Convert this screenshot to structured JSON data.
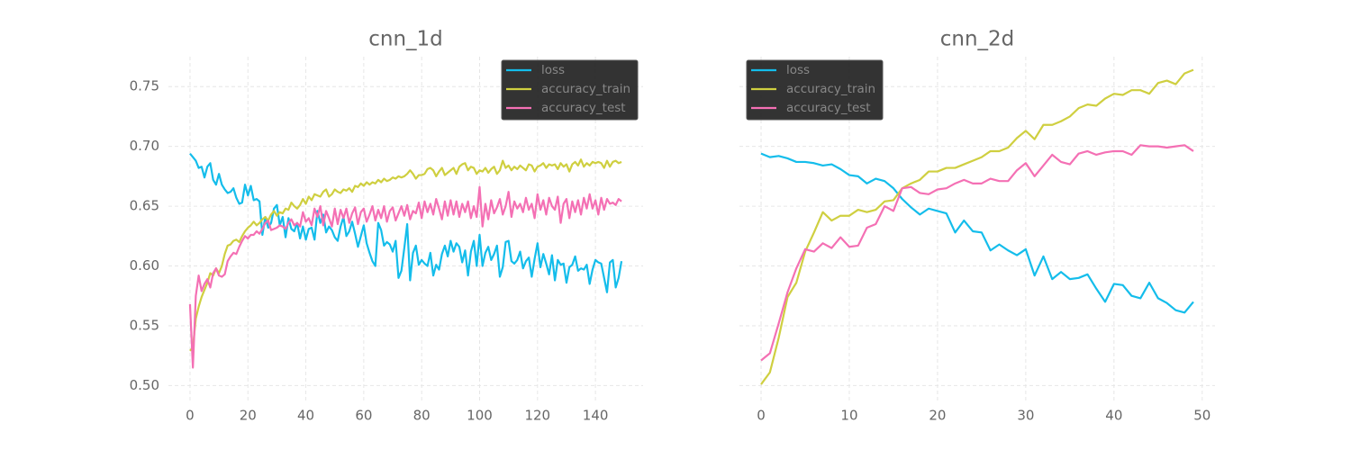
{
  "chart_data": [
    {
      "type": "line",
      "title": "cnn_1d",
      "legend": "upper right",
      "grid": true,
      "xlim": [
        -7.45,
        156.45
      ],
      "xticks": [
        0,
        20,
        40,
        60,
        80,
        100,
        120,
        140
      ],
      "ylim": [
        0.486,
        0.775
      ],
      "yticks": [
        {
          "value": 0.5,
          "label": "0.50"
        },
        0.55,
        {
          "value": 0.6,
          "label": "0.60"
        },
        0.65,
        {
          "value": 0.7,
          "label": "0.70"
        },
        0.75
      ],
      "x": [
        0,
        1,
        2,
        3,
        4,
        5,
        6,
        7,
        8,
        9,
        10,
        11,
        12,
        13,
        14,
        15,
        16,
        17,
        18,
        19,
        20,
        21,
        22,
        23,
        24,
        25,
        26,
        27,
        28,
        29,
        30,
        31,
        32,
        33,
        34,
        35,
        36,
        37,
        38,
        39,
        40,
        41,
        42,
        43,
        44,
        45,
        46,
        47,
        48,
        49,
        50,
        51,
        52,
        53,
        54,
        55,
        56,
        57,
        58,
        59,
        60,
        61,
        62,
        63,
        64,
        65,
        66,
        67,
        68,
        69,
        70,
        71,
        72,
        73,
        74,
        75,
        76,
        77,
        78,
        79,
        80,
        81,
        82,
        83,
        84,
        85,
        86,
        87,
        88,
        89,
        90,
        91,
        92,
        93,
        94,
        95,
        96,
        97,
        98,
        99,
        100,
        101,
        102,
        103,
        104,
        105,
        106,
        107,
        108,
        109,
        110,
        111,
        112,
        113,
        114,
        115,
        116,
        117,
        118,
        119,
        120,
        121,
        122,
        123,
        124,
        125,
        126,
        127,
        128,
        129,
        130,
        131,
        132,
        133,
        134,
        135,
        136,
        137,
        138,
        139,
        140,
        141,
        142,
        143,
        144,
        145,
        146,
        147,
        148,
        149
      ],
      "series": [
        {
          "name": "loss",
          "color": "#14bdeb",
          "values": [
            0.694,
            0.691,
            0.688,
            0.682,
            0.683,
            0.674,
            0.683,
            0.686,
            0.672,
            0.668,
            0.677,
            0.668,
            0.664,
            0.661,
            0.662,
            0.665,
            0.657,
            0.652,
            0.653,
            0.668,
            0.659,
            0.667,
            0.655,
            0.656,
            0.654,
            0.626,
            0.641,
            0.632,
            0.636,
            0.648,
            0.651,
            0.634,
            0.641,
            0.624,
            0.64,
            0.631,
            0.629,
            0.636,
            0.623,
            0.633,
            0.622,
            0.631,
            0.632,
            0.622,
            0.646,
            0.636,
            0.643,
            0.628,
            0.633,
            0.63,
            0.624,
            0.621,
            0.633,
            0.641,
            0.625,
            0.629,
            0.637,
            0.627,
            0.616,
            0.625,
            0.634,
            0.619,
            0.611,
            0.604,
            0.6,
            0.636,
            0.63,
            0.617,
            0.62,
            0.618,
            0.612,
            0.621,
            0.59,
            0.596,
            0.615,
            0.635,
            0.588,
            0.611,
            0.617,
            0.601,
            0.605,
            0.602,
            0.6,
            0.611,
            0.592,
            0.601,
            0.597,
            0.61,
            0.617,
            0.608,
            0.621,
            0.612,
            0.619,
            0.616,
            0.603,
            0.613,
            0.592,
            0.612,
            0.621,
            0.6,
            0.626,
            0.6,
            0.611,
            0.616,
            0.605,
            0.61,
            0.617,
            0.591,
            0.599,
            0.62,
            0.621,
            0.604,
            0.602,
            0.605,
            0.612,
            0.598,
            0.604,
            0.607,
            0.591,
            0.606,
            0.619,
            0.599,
            0.61,
            0.602,
            0.593,
            0.609,
            0.588,
            0.605,
            0.601,
            0.602,
            0.586,
            0.599,
            0.601,
            0.608,
            0.596,
            0.598,
            0.597,
            0.601,
            0.585,
            0.597,
            0.605,
            0.603,
            0.602,
            0.59,
            0.578,
            0.603,
            0.605,
            0.582,
            0.59,
            0.604
          ]
        },
        {
          "name": "accuracy_train",
          "color": "#cfcf40",
          "values": [
            0.529,
            0.532,
            0.556,
            0.566,
            0.574,
            0.58,
            0.586,
            0.594,
            0.592,
            0.598,
            0.594,
            0.6,
            0.61,
            0.617,
            0.618,
            0.621,
            0.622,
            0.62,
            0.625,
            0.629,
            0.632,
            0.634,
            0.637,
            0.634,
            0.636,
            0.639,
            0.641,
            0.638,
            0.643,
            0.646,
            0.642,
            0.645,
            0.644,
            0.648,
            0.647,
            0.653,
            0.65,
            0.648,
            0.651,
            0.656,
            0.652,
            0.658,
            0.655,
            0.66,
            0.659,
            0.658,
            0.662,
            0.664,
            0.658,
            0.66,
            0.664,
            0.662,
            0.661,
            0.664,
            0.663,
            0.665,
            0.662,
            0.667,
            0.666,
            0.669,
            0.667,
            0.67,
            0.668,
            0.67,
            0.669,
            0.672,
            0.67,
            0.673,
            0.671,
            0.672,
            0.674,
            0.673,
            0.675,
            0.674,
            0.675,
            0.677,
            0.68,
            0.677,
            0.673,
            0.676,
            0.676,
            0.677,
            0.681,
            0.682,
            0.68,
            0.675,
            0.679,
            0.682,
            0.676,
            0.678,
            0.68,
            0.682,
            0.677,
            0.683,
            0.685,
            0.686,
            0.68,
            0.683,
            0.682,
            0.677,
            0.68,
            0.679,
            0.682,
            0.678,
            0.681,
            0.683,
            0.677,
            0.68,
            0.688,
            0.682,
            0.684,
            0.68,
            0.683,
            0.681,
            0.684,
            0.682,
            0.68,
            0.685,
            0.684,
            0.679,
            0.683,
            0.684,
            0.686,
            0.682,
            0.685,
            0.684,
            0.685,
            0.681,
            0.686,
            0.683,
            0.685,
            0.679,
            0.685,
            0.687,
            0.684,
            0.689,
            0.683,
            0.686,
            0.684,
            0.687,
            0.686,
            0.687,
            0.686,
            0.682,
            0.688,
            0.683,
            0.687,
            0.688,
            0.686,
            0.687
          ]
        },
        {
          "name": "accuracy_test",
          "color": "#f470b4",
          "values": [
            0.568,
            0.515,
            0.575,
            0.592,
            0.579,
            0.585,
            0.589,
            0.582,
            0.594,
            0.598,
            0.592,
            0.591,
            0.593,
            0.604,
            0.608,
            0.611,
            0.61,
            0.616,
            0.621,
            0.625,
            0.623,
            0.626,
            0.626,
            0.629,
            0.627,
            0.631,
            0.636,
            0.638,
            0.63,
            0.631,
            0.632,
            0.634,
            0.633,
            0.631,
            0.636,
            0.639,
            0.634,
            0.636,
            0.633,
            0.645,
            0.637,
            0.64,
            0.634,
            0.648,
            0.641,
            0.65,
            0.634,
            0.646,
            0.64,
            0.633,
            0.648,
            0.635,
            0.647,
            0.64,
            0.648,
            0.636,
            0.644,
            0.649,
            0.635,
            0.645,
            0.648,
            0.637,
            0.643,
            0.65,
            0.638,
            0.647,
            0.64,
            0.65,
            0.637,
            0.646,
            0.649,
            0.638,
            0.644,
            0.65,
            0.642,
            0.651,
            0.639,
            0.646,
            0.644,
            0.653,
            0.64,
            0.654,
            0.645,
            0.652,
            0.643,
            0.656,
            0.648,
            0.639,
            0.654,
            0.642,
            0.655,
            0.643,
            0.654,
            0.641,
            0.652,
            0.645,
            0.654,
            0.64,
            0.65,
            0.641,
            0.666,
            0.633,
            0.652,
            0.639,
            0.655,
            0.644,
            0.649,
            0.656,
            0.643,
            0.65,
            0.662,
            0.641,
            0.654,
            0.648,
            0.652,
            0.645,
            0.657,
            0.647,
            0.652,
            0.64,
            0.66,
            0.647,
            0.655,
            0.643,
            0.657,
            0.65,
            0.647,
            0.658,
            0.636,
            0.652,
            0.656,
            0.64,
            0.654,
            0.645,
            0.655,
            0.643,
            0.657,
            0.648,
            0.66,
            0.648,
            0.655,
            0.643,
            0.657,
            0.647,
            0.656,
            0.652,
            0.653,
            0.651,
            0.656,
            0.654
          ]
        }
      ]
    },
    {
      "type": "line",
      "title": "cnn_2d",
      "legend": "upper left",
      "grid": true,
      "sharey": true,
      "xlim": [
        -2.45,
        51.45
      ],
      "xticks": [
        0,
        10,
        20,
        30,
        40,
        50
      ],
      "ylim": [
        0.486,
        0.775
      ],
      "yticks": [
        0.5,
        0.55,
        0.6,
        0.65,
        0.7,
        0.75
      ],
      "x": [
        0,
        1,
        2,
        3,
        4,
        5,
        6,
        7,
        8,
        9,
        10,
        11,
        12,
        13,
        14,
        15,
        16,
        17,
        18,
        19,
        20,
        21,
        22,
        23,
        24,
        25,
        26,
        27,
        28,
        29,
        30,
        31,
        32,
        33,
        34,
        35,
        36,
        37,
        38,
        39,
        40,
        41,
        42,
        43,
        44,
        45,
        46,
        47,
        48,
        49
      ],
      "series": [
        {
          "name": "loss",
          "color": "#14bdeb",
          "values": [
            0.694,
            0.691,
            0.692,
            0.69,
            0.687,
            0.687,
            0.686,
            0.684,
            0.685,
            0.681,
            0.676,
            0.675,
            0.669,
            0.673,
            0.671,
            0.665,
            0.656,
            0.649,
            0.643,
            0.648,
            0.646,
            0.644,
            0.628,
            0.638,
            0.629,
            0.628,
            0.613,
            0.618,
            0.613,
            0.609,
            0.614,
            0.592,
            0.608,
            0.589,
            0.595,
            0.589,
            0.59,
            0.593,
            0.581,
            0.57,
            0.585,
            0.584,
            0.575,
            0.573,
            0.586,
            0.573,
            0.569,
            0.563,
            0.561,
            0.57
          ]
        },
        {
          "name": "accuracy_train",
          "color": "#cfcf40",
          "values": [
            0.501,
            0.511,
            0.54,
            0.574,
            0.586,
            0.612,
            0.628,
            0.645,
            0.638,
            0.642,
            0.642,
            0.647,
            0.645,
            0.647,
            0.654,
            0.655,
            0.665,
            0.669,
            0.672,
            0.679,
            0.679,
            0.682,
            0.682,
            0.685,
            0.688,
            0.691,
            0.696,
            0.696,
            0.699,
            0.707,
            0.713,
            0.706,
            0.718,
            0.718,
            0.721,
            0.725,
            0.732,
            0.735,
            0.734,
            0.74,
            0.744,
            0.743,
            0.747,
            0.747,
            0.744,
            0.753,
            0.755,
            0.752,
            0.761,
            0.764
          ]
        },
        {
          "name": "accuracy_test",
          "color": "#f470b4",
          "values": [
            0.521,
            0.527,
            0.552,
            0.578,
            0.598,
            0.614,
            0.612,
            0.619,
            0.615,
            0.624,
            0.616,
            0.617,
            0.632,
            0.635,
            0.65,
            0.646,
            0.665,
            0.666,
            0.661,
            0.66,
            0.664,
            0.665,
            0.669,
            0.672,
            0.669,
            0.669,
            0.673,
            0.671,
            0.671,
            0.68,
            0.686,
            0.675,
            0.684,
            0.693,
            0.687,
            0.685,
            0.694,
            0.696,
            0.693,
            0.695,
            0.696,
            0.696,
            0.693,
            0.701,
            0.7,
            0.7,
            0.699,
            0.7,
            0.701,
            0.696
          ]
        }
      ]
    }
  ]
}
